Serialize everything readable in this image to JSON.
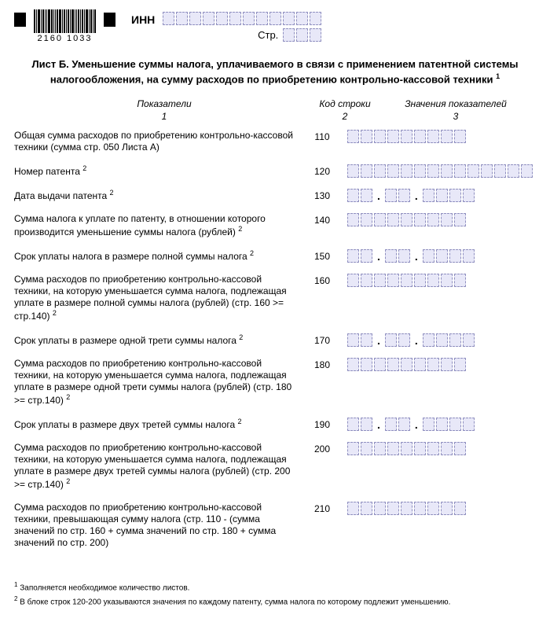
{
  "header": {
    "barcode_numbers": "2160   1033",
    "inn_label": "ИНН",
    "inn_cells": 12,
    "str_label": "Стр.",
    "str_cells": 3
  },
  "title": "Лист Б. Уменьшение суммы налога, уплачиваемого в связи с применением патентной системы налогообложения, на сумму расходов по приобретению контрольно-кассовой техники",
  "title_sup": "1",
  "columns": {
    "c1": "Показатели",
    "c1s": "1",
    "c2": "Код строки",
    "c2s": "2",
    "c3": "Значения показателей",
    "c3s": "3"
  },
  "rows": [
    {
      "label": "Общая сумма расходов по приобретению контрольно-кассовой техники (сумма стр. 050 Листа А)",
      "sup": "",
      "code": "110",
      "type": "num",
      "cells": 9
    },
    {
      "label": "Номер патента",
      "sup": "2",
      "code": "120",
      "type": "num",
      "cells": 14
    },
    {
      "label": "Дата выдачи патента",
      "sup": "2",
      "code": "130",
      "type": "date"
    },
    {
      "label": "Сумма налога к уплате по патенту, в отношении которого производится уменьшение суммы налога (рублей)",
      "sup": "2",
      "code": "140",
      "type": "num",
      "cells": 9
    },
    {
      "label": "Срок уплаты налога в размере полной суммы налога",
      "sup": "2",
      "code": "150",
      "type": "date"
    },
    {
      "label": "Сумма расходов по приобретению контрольно-кассовой техники, на которую уменьшается сумма налога, подлежащая уплате в размере полной суммы налога (рублей) (стр. 160 >= стр.140)",
      "sup": "2",
      "code": "160",
      "type": "num",
      "cells": 9
    },
    {
      "label": "Срок уплаты в размере одной трети суммы налога",
      "sup": "2",
      "code": "170",
      "type": "date"
    },
    {
      "label": "Сумма расходов по приобретению контрольно-кассовой техники, на которую уменьшается сумма налога, подлежащая уплате в размере одной трети суммы налога (рублей) (стр. 180 >= стр.140)",
      "sup": "2",
      "code": "180",
      "type": "num",
      "cells": 9
    },
    {
      "label": "Срок уплаты в размере двух третей суммы налога",
      "sup": "2",
      "code": "190",
      "type": "date"
    },
    {
      "label": "Сумма расходов по приобретению контрольно-кассовой техники, на которую уменьшается сумма налога, подлежащая уплате в размере двух третей суммы налога (рублей) (стр. 200 >= стр.140)",
      "sup": "2",
      "code": "200",
      "type": "num",
      "cells": 9
    },
    {
      "label": "Сумма расходов по приобретению контрольно-кассовой техники, превышающая сумму налога (стр. 110 - (сумма значений по стр. 160 + сумма значений по стр. 180 + сумма значений по стр. 200)",
      "sup": "",
      "code": "210",
      "type": "num",
      "cells": 9
    }
  ],
  "footnotes": {
    "f1": "Заполняется необходимое количество листов.",
    "f2": "В блоке строк 120-200 указываются значения по каждому патенту, сумма налога по которому подлежит уменьшению."
  }
}
